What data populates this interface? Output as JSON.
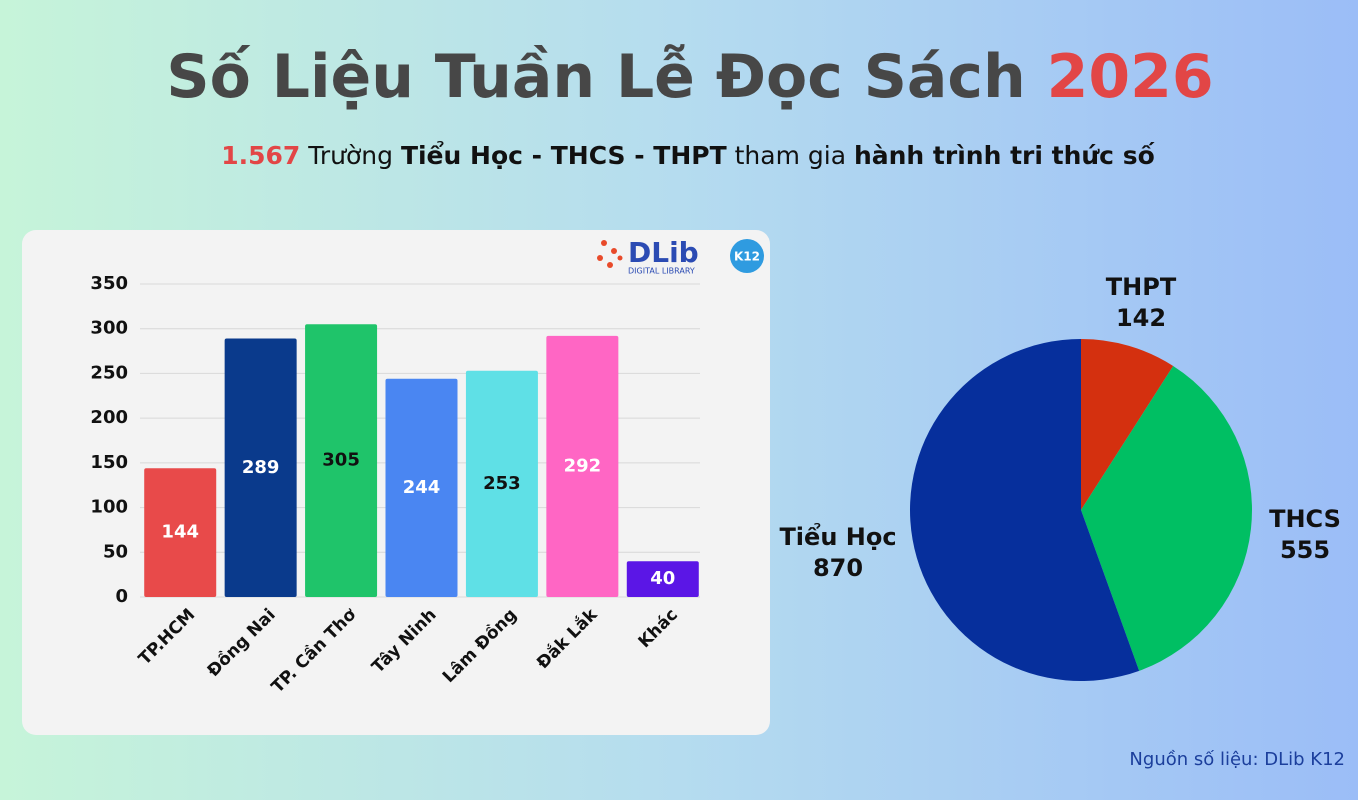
{
  "header": {
    "title": "Số Liệu Tuần Lễ Đọc Sách",
    "title_year": "2026",
    "subtitle": {
      "count": "1.567",
      "part1": "Trường",
      "levels": "Tiểu Học - THCS - THPT",
      "part2": "tham gia",
      "journey": "hành trình tri thức số"
    }
  },
  "logo": {
    "name": "DLib",
    "badge": "K12",
    "tagline": "DIGITAL LIBRARY"
  },
  "source": "Nguồn số liệu: DLib K12",
  "chart_data": [
    {
      "type": "bar",
      "categories": [
        "TP.HCM",
        "Đồng Nai",
        "TP. Cần Thơ",
        "Tây Ninh",
        "Lâm Đồng",
        "Đắk Lắk",
        "Khác"
      ],
      "values": [
        144,
        289,
        305,
        244,
        253,
        292,
        40
      ],
      "colors": [
        "#e84a4a",
        "#0a3a8c",
        "#1fc46a",
        "#4a86f2",
        "#5fe0e6",
        "#ff66c4",
        "#5b16e6"
      ],
      "label_colors": [
        "#ffffff",
        "#ffffff",
        "#111111",
        "#ffffff",
        "#111111",
        "#ffffff",
        "#ffffff"
      ],
      "ylim": [
        0,
        350
      ],
      "yticks": [
        0,
        50,
        100,
        150,
        200,
        250,
        300,
        350
      ],
      "grid": true
    },
    {
      "type": "pie",
      "categories": [
        "THPT",
        "THCS",
        "Tiểu Học"
      ],
      "values": [
        142,
        555,
        870
      ],
      "colors": [
        "#d4300f",
        "#00bf63",
        "#062f9c"
      ]
    }
  ]
}
